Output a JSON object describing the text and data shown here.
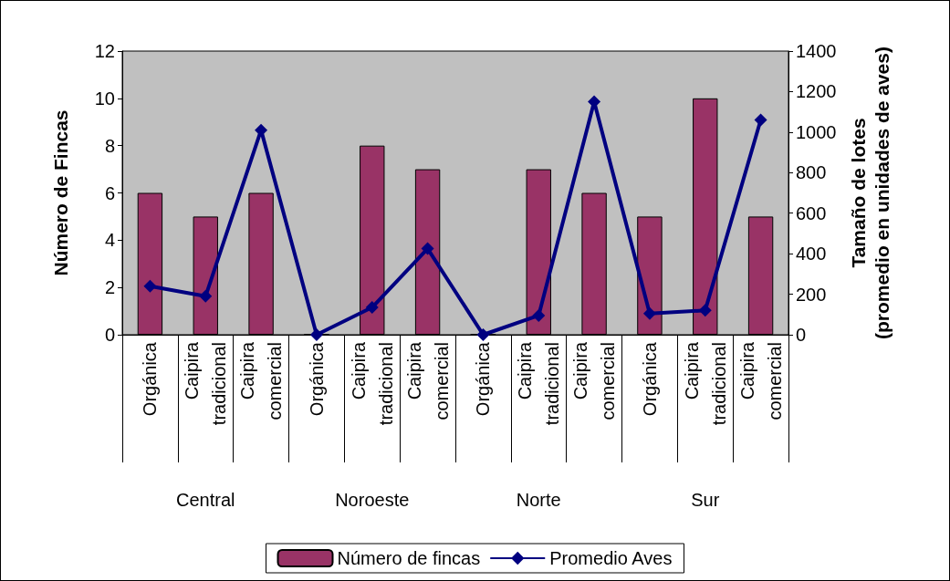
{
  "chart_data": {
    "type": "bar",
    "ylabel": "Número de Fincas",
    "y2label": "Tamaño de lotes\n(promedio en unidades de aves)",
    "categories": [
      "Orgánica",
      "Caipira tradicional",
      "Caipira comercial",
      "Orgánica",
      "Caipira tradicional",
      "Caipira comercial",
      "Orgánica",
      "Caipira tradicional",
      "Caipira comercial",
      "Orgánica",
      "Caipira tradicional",
      "Caipira comercial"
    ],
    "series": [
      {
        "name": "Número de fincas",
        "color": "#993366",
        "values": [
          6,
          5,
          6,
          0,
          8,
          7,
          0,
          7,
          6,
          5,
          10,
          5
        ]
      },
      {
        "name": "Promedio Aves",
        "type": "line",
        "axis": "y2",
        "color": "#000080",
        "marker": "diamond",
        "values": [
          240,
          190,
          1010,
          0,
          135,
          425,
          0,
          95,
          1150,
          105,
          120,
          1060
        ]
      }
    ],
    "annotations": [
      "Central",
      "Noroeste",
      "Norte",
      "Sur"
    ],
    "ylim": [
      0,
      12
    ],
    "yticks": [
      0,
      2,
      4,
      6,
      8,
      10,
      12
    ],
    "y2lim": [
      0,
      1400
    ],
    "y2ticks": [
      0,
      200,
      400,
      600,
      800,
      1000,
      1200,
      1400
    ],
    "legend": "bottom",
    "grid": false
  }
}
